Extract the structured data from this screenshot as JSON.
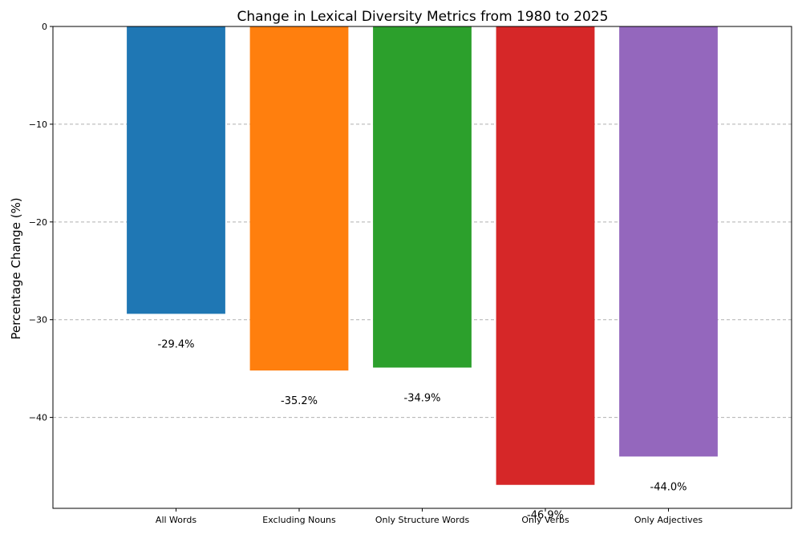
{
  "chart_data": {
    "type": "bar",
    "title": "Change in Lexical Diversity Metrics from 1980 to 2025",
    "xlabel": "",
    "ylabel": "Percentage Change (%)",
    "ylim": [
      -49.3,
      0
    ],
    "yticks": [
      0,
      -10,
      -20,
      -30,
      -40
    ],
    "ytick_labels": [
      "0",
      "−10",
      "−20",
      "−30",
      "−40"
    ],
    "grid": true,
    "categories": [
      "All Words",
      "Excluding Nouns",
      "Only Structure Words",
      "Only Verbs",
      "Only Adjectives"
    ],
    "values": [
      -29.4,
      -35.2,
      -34.9,
      -46.9,
      -44.0
    ],
    "value_labels": [
      "-29.4%",
      "-35.2%",
      "-34.9%",
      "-46.9%",
      "-44.0%"
    ],
    "colors": [
      "#1f77b4",
      "#ff7f0e",
      "#2ca02c",
      "#d62728",
      "#9467bd"
    ]
  }
}
